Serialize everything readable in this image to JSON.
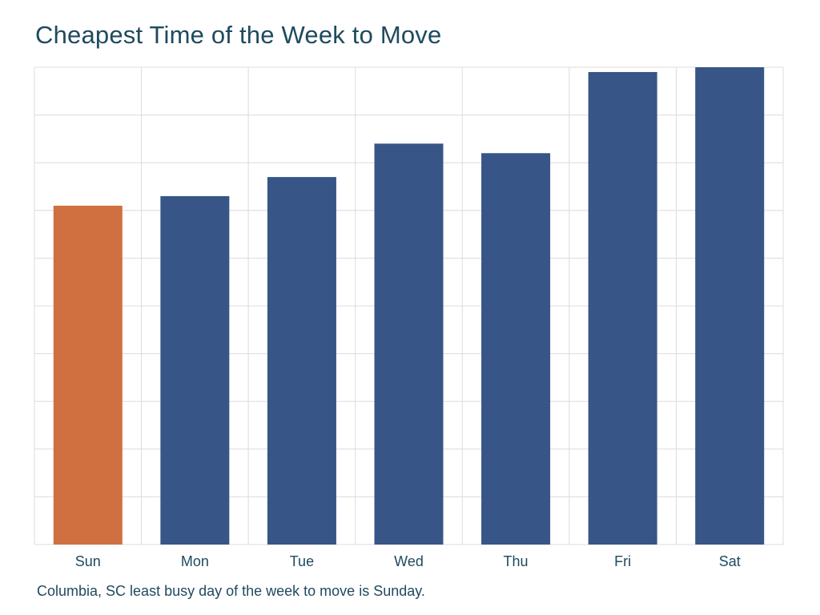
{
  "chart_data": {
    "type": "bar",
    "title": "Cheapest Time of the Week to Move",
    "caption": "Columbia, SC least busy day of the week to move is Sunday.",
    "categories": [
      "Sun",
      "Mon",
      "Tue",
      "Wed",
      "Thu",
      "Fri",
      "Sat"
    ],
    "values": [
      71,
      73,
      77,
      84,
      82,
      99,
      100
    ],
    "ylim": [
      0,
      100
    ],
    "grid": true,
    "colors": {
      "highlight": "#d06f3f",
      "default": "#375586",
      "grid": "#dcdcdc",
      "text": "#1f4a5e"
    },
    "highlight_category": "Sun"
  }
}
